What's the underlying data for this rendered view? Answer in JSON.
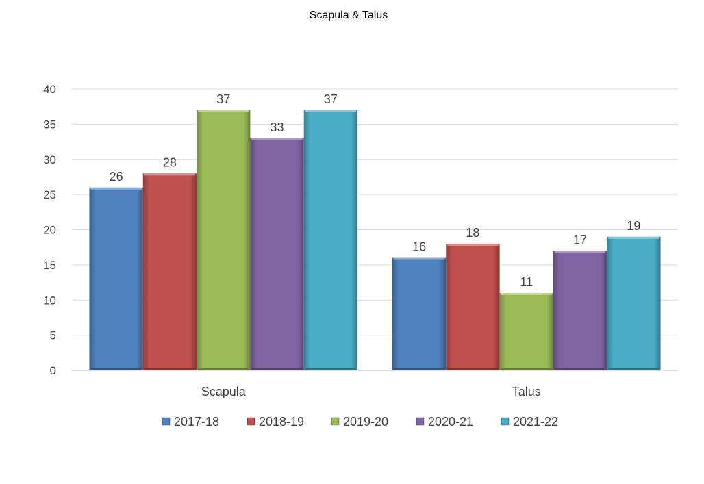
{
  "chart_data": {
    "type": "bar",
    "title": "Scapula & Talus",
    "xlabel": "",
    "ylabel": "",
    "categories": [
      "Scapula",
      "Talus"
    ],
    "series": [
      {
        "name": "2017-18",
        "color": "#4F81BD",
        "values": [
          26,
          16
        ]
      },
      {
        "name": "2018-19",
        "color": "#C0504D",
        "values": [
          28,
          18
        ]
      },
      {
        "name": "2019-20",
        "color": "#9BBB59",
        "values": [
          37,
          11
        ]
      },
      {
        "name": "2020-21",
        "color": "#8064A2",
        "values": [
          33,
          17
        ]
      },
      {
        "name": "2021-22",
        "color": "#4BACC6",
        "values": [
          37,
          19
        ]
      }
    ],
    "ylim": [
      0,
      40
    ],
    "yticks": [
      0,
      5,
      10,
      15,
      20,
      25,
      30,
      35,
      40
    ],
    "grid": true,
    "legend": "bottom",
    "data_labels": true
  }
}
